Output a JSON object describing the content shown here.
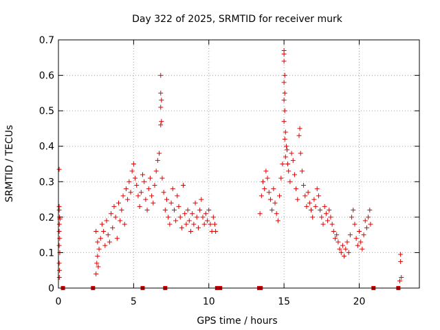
{
  "chart_data": {
    "type": "scatter",
    "title": "Day 322 of 2025, SRMTID for receiver murk",
    "xlabel": "GPS time / hours",
    "ylabel": "SRMTID / TECUs",
    "xlim": [
      0,
      24
    ],
    "ylim": [
      0,
      0.7
    ],
    "xticks": [
      0,
      5,
      10,
      15,
      20
    ],
    "yticks": [
      0,
      0.1,
      0.2,
      0.3,
      0.4,
      0.5,
      0.6,
      0.7
    ],
    "xtick_labels": [
      "0",
      "5",
      "10",
      "15",
      "20"
    ],
    "ytick_labels": [
      "0",
      "0.1",
      "0.2",
      "0.3",
      "0.4",
      "0.5",
      "0.6",
      "0.7"
    ],
    "grid": true,
    "marker": "+",
    "color": "#dd0000",
    "series": [
      {
        "name": "SRMTID",
        "points": [
          [
            0.05,
            0.335
          ],
          [
            0.05,
            0.23
          ],
          [
            0.05,
            0.22
          ],
          [
            0.07,
            0.2
          ],
          [
            0.1,
            0.195
          ],
          [
            0.06,
            0.18
          ],
          [
            0.05,
            0.16
          ],
          [
            0.08,
            0.14
          ],
          [
            0.05,
            0.12
          ],
          [
            0.09,
            0.1
          ],
          [
            0.05,
            0.07
          ],
          [
            0.07,
            0.05
          ],
          [
            0.06,
            0.03
          ],
          [
            2.5,
            0.16
          ],
          [
            2.6,
            0.13
          ],
          [
            2.7,
            0.11
          ],
          [
            2.6,
            0.09
          ],
          [
            2.55,
            0.07
          ],
          [
            2.65,
            0.06
          ],
          [
            2.5,
            0.04
          ],
          [
            2.8,
            0.14
          ],
          [
            2.9,
            0.18
          ],
          [
            3.0,
            0.16
          ],
          [
            3.1,
            0.12
          ],
          [
            3.2,
            0.19
          ],
          [
            3.3,
            0.15
          ],
          [
            3.4,
            0.13
          ],
          [
            3.5,
            0.21
          ],
          [
            3.6,
            0.17
          ],
          [
            3.7,
            0.23
          ],
          [
            3.8,
            0.2
          ],
          [
            3.9,
            0.14
          ],
          [
            4.0,
            0.24
          ],
          [
            4.1,
            0.19
          ],
          [
            4.2,
            0.22
          ],
          [
            4.3,
            0.26
          ],
          [
            4.4,
            0.18
          ],
          [
            4.5,
            0.28
          ],
          [
            4.6,
            0.25
          ],
          [
            4.7,
            0.3
          ],
          [
            4.8,
            0.27
          ],
          [
            4.9,
            0.33
          ],
          [
            5.0,
            0.35
          ],
          [
            5.1,
            0.31
          ],
          [
            5.2,
            0.29
          ],
          [
            5.3,
            0.26
          ],
          [
            5.4,
            0.23
          ],
          [
            5.5,
            0.27
          ],
          [
            5.6,
            0.32
          ],
          [
            5.7,
            0.3
          ],
          [
            5.8,
            0.25
          ],
          [
            5.9,
            0.22
          ],
          [
            6.0,
            0.28
          ],
          [
            6.1,
            0.31
          ],
          [
            6.2,
            0.26
          ],
          [
            6.3,
            0.24
          ],
          [
            6.4,
            0.29
          ],
          [
            6.5,
            0.33
          ],
          [
            6.6,
            0.36
          ],
          [
            6.7,
            0.38
          ],
          [
            6.8,
            0.6
          ],
          [
            6.8,
            0.55
          ],
          [
            6.85,
            0.53
          ],
          [
            6.8,
            0.51
          ],
          [
            6.85,
            0.47
          ],
          [
            6.8,
            0.46
          ],
          [
            6.9,
            0.31
          ],
          [
            7.0,
            0.27
          ],
          [
            7.1,
            0.22
          ],
          [
            7.2,
            0.25
          ],
          [
            7.3,
            0.2
          ],
          [
            7.4,
            0.18
          ],
          [
            7.5,
            0.24
          ],
          [
            7.6,
            0.28
          ],
          [
            7.7,
            0.22
          ],
          [
            7.8,
            0.19
          ],
          [
            7.9,
            0.26
          ],
          [
            8.0,
            0.23
          ],
          [
            8.1,
            0.2
          ],
          [
            8.2,
            0.17
          ],
          [
            8.3,
            0.29
          ],
          [
            8.4,
            0.21
          ],
          [
            8.5,
            0.18
          ],
          [
            8.6,
            0.22
          ],
          [
            8.7,
            0.19
          ],
          [
            8.8,
            0.16
          ],
          [
            8.9,
            0.21
          ],
          [
            9.0,
            0.18
          ],
          [
            9.1,
            0.24
          ],
          [
            9.2,
            0.2
          ],
          [
            9.3,
            0.17
          ],
          [
            9.4,
            0.22
          ],
          [
            9.5,
            0.25
          ],
          [
            9.6,
            0.2
          ],
          [
            9.7,
            0.18
          ],
          [
            9.8,
            0.21
          ],
          [
            9.9,
            0.19
          ],
          [
            10.0,
            0.22
          ],
          [
            10.1,
            0.18
          ],
          [
            10.2,
            0.16
          ],
          [
            10.3,
            0.2
          ],
          [
            10.4,
            0.18
          ],
          [
            10.45,
            0.16
          ],
          [
            13.4,
            0.21
          ],
          [
            13.5,
            0.26
          ],
          [
            13.6,
            0.3
          ],
          [
            13.7,
            0.28
          ],
          [
            13.8,
            0.33
          ],
          [
            13.9,
            0.31
          ],
          [
            14.0,
            0.27
          ],
          [
            14.1,
            0.25
          ],
          [
            14.2,
            0.22
          ],
          [
            14.3,
            0.28
          ],
          [
            14.4,
            0.24
          ],
          [
            14.5,
            0.21
          ],
          [
            14.6,
            0.19
          ],
          [
            14.7,
            0.26
          ],
          [
            14.8,
            0.31
          ],
          [
            14.9,
            0.35
          ],
          [
            15.0,
            0.67
          ],
          [
            15.0,
            0.66
          ],
          [
            15.0,
            0.64
          ],
          [
            15.05,
            0.6
          ],
          [
            15.0,
            0.58
          ],
          [
            15.05,
            0.55
          ],
          [
            15.0,
            0.53
          ],
          [
            15.05,
            0.5
          ],
          [
            15.0,
            0.47
          ],
          [
            15.1,
            0.44
          ],
          [
            15.05,
            0.42
          ],
          [
            15.15,
            0.4
          ],
          [
            15.2,
            0.39
          ],
          [
            15.1,
            0.37
          ],
          [
            15.25,
            0.35
          ],
          [
            15.3,
            0.33
          ],
          [
            15.4,
            0.3
          ],
          [
            15.5,
            0.38
          ],
          [
            15.6,
            0.36
          ],
          [
            15.7,
            0.32
          ],
          [
            15.8,
            0.28
          ],
          [
            15.9,
            0.25
          ],
          [
            16.0,
            0.43
          ],
          [
            16.05,
            0.45
          ],
          [
            16.1,
            0.38
          ],
          [
            16.2,
            0.33
          ],
          [
            16.3,
            0.29
          ],
          [
            16.4,
            0.26
          ],
          [
            16.5,
            0.23
          ],
          [
            16.6,
            0.27
          ],
          [
            16.7,
            0.24
          ],
          [
            16.8,
            0.22
          ],
          [
            16.9,
            0.2
          ],
          [
            17.0,
            0.25
          ],
          [
            17.1,
            0.23
          ],
          [
            17.2,
            0.28
          ],
          [
            17.3,
            0.26
          ],
          [
            17.4,
            0.22
          ],
          [
            17.5,
            0.2
          ],
          [
            17.6,
            0.18
          ],
          [
            17.7,
            0.23
          ],
          [
            17.8,
            0.21
          ],
          [
            17.9,
            0.19
          ],
          [
            18.0,
            0.22
          ],
          [
            18.1,
            0.2
          ],
          [
            18.2,
            0.18
          ],
          [
            18.3,
            0.16
          ],
          [
            18.4,
            0.14
          ],
          [
            18.5,
            0.15
          ],
          [
            18.6,
            0.13
          ],
          [
            18.7,
            0.11
          ],
          [
            18.8,
            0.1
          ],
          [
            18.9,
            0.12
          ],
          [
            19.0,
            0.09
          ],
          [
            19.1,
            0.11
          ],
          [
            19.2,
            0.13
          ],
          [
            19.3,
            0.1
          ],
          [
            19.4,
            0.15
          ],
          [
            19.5,
            0.2
          ],
          [
            19.6,
            0.22
          ],
          [
            19.7,
            0.18
          ],
          [
            19.8,
            0.14
          ],
          [
            19.9,
            0.12
          ],
          [
            20.0,
            0.16
          ],
          [
            20.1,
            0.13
          ],
          [
            20.2,
            0.11
          ],
          [
            20.3,
            0.15
          ],
          [
            20.4,
            0.19
          ],
          [
            20.5,
            0.17
          ],
          [
            20.6,
            0.2
          ],
          [
            20.7,
            0.22
          ],
          [
            20.75,
            0.18
          ],
          [
            22.75,
            0.095
          ],
          [
            22.75,
            0.075
          ],
          [
            22.8,
            0.03
          ],
          [
            22.7,
            0.02
          ]
        ]
      }
    ],
    "bottom_markers": [
      0.3,
      2.3,
      5.6,
      7.1,
      10.55,
      10.65,
      10.75,
      13.35,
      13.45,
      20.95,
      22.6
    ]
  }
}
